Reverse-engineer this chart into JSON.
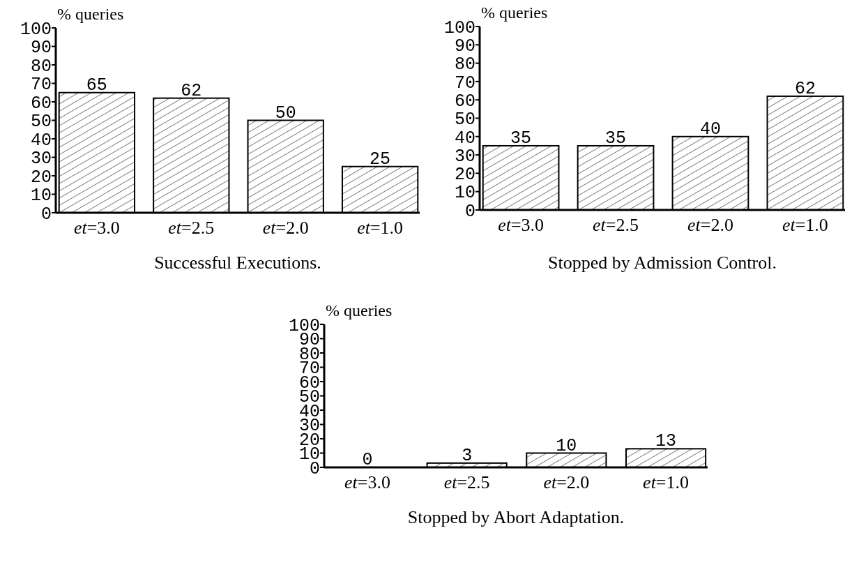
{
  "chart_data": [
    {
      "type": "bar",
      "title": "Successful Executions.",
      "ylabel": "% queries",
      "categories": [
        "et=3.0",
        "et=2.5",
        "et=2.0",
        "et=1.0"
      ],
      "values": [
        65,
        62,
        50,
        25
      ],
      "color": "#ffffff",
      "ylim": [
        0,
        100
      ],
      "yticks": [
        0,
        10,
        20,
        30,
        40,
        50,
        60,
        70,
        80,
        90,
        100
      ],
      "data_labels": true
    },
    {
      "type": "bar",
      "title": "Stopped by Admission Control.",
      "ylabel": "% queries",
      "categories": [
        "et=3.0",
        "et=2.5",
        "et=2.0",
        "et=1.0"
      ],
      "values": [
        35,
        35,
        40,
        62
      ],
      "color": "#ffffff",
      "ylim": [
        0,
        100
      ],
      "yticks": [
        0,
        10,
        20,
        30,
        40,
        50,
        60,
        70,
        80,
        90,
        100
      ],
      "data_labels": true
    },
    {
      "type": "bar",
      "title": "Stopped by Abort Adaptation.",
      "ylabel": "% queries",
      "categories": [
        "et=3.0",
        "et=2.5",
        "et=2.0",
        "et=1.0"
      ],
      "values": [
        0,
        3,
        10,
        13
      ],
      "color": "#ffffff",
      "ylim": [
        0,
        100
      ],
      "yticks": [
        0,
        10,
        20,
        30,
        40,
        50,
        60,
        70,
        80,
        90,
        100
      ],
      "data_labels": true
    }
  ]
}
